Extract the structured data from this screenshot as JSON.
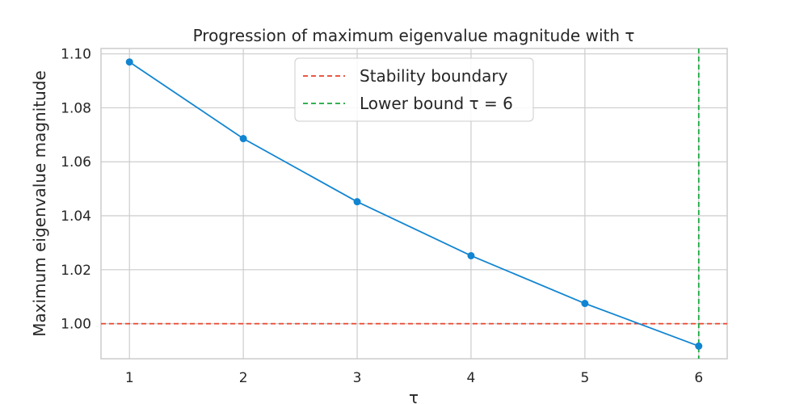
{
  "chart_data": {
    "type": "line",
    "title": "Progression of maximum eigenvalue magnitude with τ",
    "xlabel": "τ",
    "ylabel": "Maximum eigenvalue magnitude",
    "x": [
      1,
      2,
      3,
      4,
      5,
      6
    ],
    "xticks": [
      "1",
      "2",
      "3",
      "4",
      "5",
      "6"
    ],
    "yticks": [
      "1.00",
      "1.02",
      "1.04",
      "1.06",
      "1.08",
      "1.10"
    ],
    "xlim": [
      0.75,
      6.25
    ],
    "ylim": [
      0.987,
      1.102
    ],
    "grid": true,
    "legend_position": "top-center",
    "series": [
      {
        "values": [
          1.097,
          1.0686,
          1.0452,
          1.0252,
          1.0075,
          0.9917
        ],
        "color": "#1185d1",
        "marker": "circle"
      }
    ],
    "reference_lines": [
      {
        "orientation": "horizontal",
        "value": 1.0,
        "label": "Stability boundary",
        "color": "#e8432a",
        "style": "dashed"
      },
      {
        "orientation": "vertical",
        "value": 6,
        "label": "Lower bound τ = 6",
        "color": "#17a83b",
        "style": "dashed"
      }
    ]
  }
}
